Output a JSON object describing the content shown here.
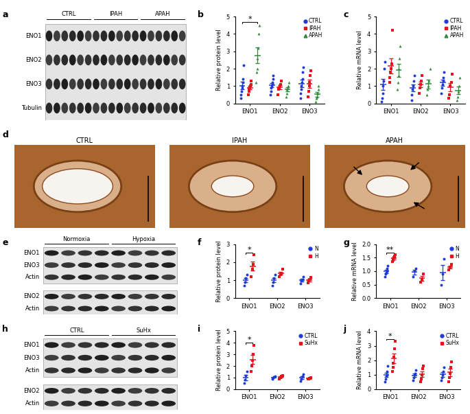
{
  "chart_data": [
    {
      "panel": "b",
      "type": "dot",
      "ylabel": "Relative protein level",
      "categories": [
        "ENO1",
        "ENO2",
        "ENO3"
      ],
      "ylim": [
        0,
        5
      ],
      "yticks": [
        0,
        1,
        2,
        3,
        4,
        5
      ],
      "legend": "upper right",
      "series": [
        {
          "name": "CTRL",
          "color": "#1f3bd6",
          "marker": "circle",
          "values": [
            [
              0.3,
              0.5,
              0.7,
              0.9,
              1.0,
              1.2,
              1.4,
              2.2
            ],
            [
              0.5,
              0.7,
              0.9,
              1.0,
              1.1,
              1.2,
              1.4,
              1.6
            ],
            [
              0.3,
              0.6,
              0.8,
              1.0,
              1.2,
              1.4,
              1.8,
              2.1
            ]
          ]
        },
        {
          "name": "IPAH",
          "color": "#e3141b",
          "marker": "square",
          "values": [
            [
              0.5,
              0.7,
              0.8,
              0.9,
              1.0,
              1.1,
              1.3
            ],
            [
              0.5,
              0.8,
              0.9,
              1.0,
              1.1,
              1.3
            ],
            [
              0.4,
              0.7,
              1.0,
              1.2,
              1.6,
              1.9
            ]
          ]
        },
        {
          "name": "APAH",
          "color": "#2e8b3a",
          "marker": "triangle",
          "values": [
            [
              1.2,
              1.8,
              2.0,
              2.6,
              3.2,
              4.0,
              4.5
            ],
            [
              0.4,
              0.6,
              0.8,
              0.9,
              1.0,
              1.2
            ],
            [
              0.1,
              0.3,
              0.4,
              0.6,
              0.8,
              1.0
            ]
          ]
        }
      ],
      "annotations": [
        {
          "text": "*",
          "category": "ENO1",
          "series": [
            "CTRL",
            "APAH"
          ]
        }
      ]
    },
    {
      "panel": "c",
      "type": "dot",
      "ylabel": "Relative mRNA level",
      "categories": [
        "ENO1",
        "ENO2",
        "ENO3"
      ],
      "ylim": [
        0,
        5
      ],
      "yticks": [
        0,
        1,
        2,
        3,
        4,
        5
      ],
      "legend": "upper right",
      "series": [
        {
          "name": "CTRL",
          "color": "#1f3bd6",
          "marker": "circle",
          "values": [
            [
              0.1,
              0.3,
              0.6,
              1.0,
              1.3,
              2.0,
              2.4
            ],
            [
              0.2,
              0.5,
              0.8,
              1.0,
              1.3,
              1.6
            ],
            [
              0.6,
              0.9,
              1.1,
              1.3,
              1.5,
              1.8
            ]
          ]
        },
        {
          "name": "IPAH",
          "color": "#e3141b",
          "marker": "square",
          "values": [
            [
              1.2,
              1.5,
              1.8,
              2.0,
              2.3,
              4.2
            ],
            [
              0.6,
              0.9,
              1.1,
              1.3,
              1.6
            ],
            [
              0.3,
              0.5,
              1.0,
              1.2,
              1.7
            ]
          ]
        },
        {
          "name": "APAH",
          "color": "#2e8b3a",
          "marker": "triangle",
          "values": [
            [
              0.8,
              1.2,
              1.6,
              2.0,
              2.6,
              3.3
            ],
            [
              0.5,
              0.8,
              1.0,
              1.3,
              2.0
            ],
            [
              0.2,
              0.4,
              0.7,
              1.0,
              1.5
            ]
          ]
        }
      ],
      "annotations": []
    },
    {
      "panel": "f",
      "type": "dot",
      "ylabel": "Relative protein level",
      "categories": [
        "ENO1",
        "ENO2",
        "ENO3"
      ],
      "ylim": [
        0,
        3
      ],
      "yticks": [
        0,
        1,
        2,
        3
      ],
      "legend": "upper right",
      "series": [
        {
          "name": "N",
          "color": "#1f3bd6",
          "marker": "circle",
          "values": [
            [
              0.7,
              0.9,
              1.1,
              1.3
            ],
            [
              0.7,
              0.9,
              1.1,
              1.3
            ],
            [
              0.8,
              0.95,
              1.05,
              1.2
            ]
          ]
        },
        {
          "name": "H",
          "color": "#e3141b",
          "marker": "square",
          "values": [
            [
              1.2,
              1.6,
              1.9,
              2.4
            ],
            [
              1.2,
              1.3,
              1.4,
              1.6
            ],
            [
              0.85,
              0.95,
              1.05,
              1.15
            ]
          ]
        }
      ],
      "annotations": [
        {
          "text": "*",
          "category": "ENO1",
          "series": [
            "N",
            "H"
          ]
        }
      ]
    },
    {
      "panel": "g",
      "type": "dot",
      "ylabel": "Relative mRNA level",
      "categories": [
        "ENO1",
        "ENO2",
        "ENO3"
      ],
      "ylim": [
        0,
        2
      ],
      "yticks": [
        {
          "value": 0,
          "label": "0.0"
        },
        {
          "value": 0.5,
          "label": "0.5"
        },
        {
          "value": 1,
          "label": "1.0"
        },
        {
          "value": 1.5,
          "label": "1.5"
        },
        {
          "value": 2,
          "label": "2.0"
        }
      ],
      "legend": "upper right",
      "series": [
        {
          "name": "N",
          "color": "#1f3bd6",
          "marker": "circle",
          "values": [
            [
              0.8,
              0.9,
              0.95,
              1.0,
              1.1,
              1.2
            ],
            [
              0.8,
              1.0,
              1.1
            ],
            [
              0.5,
              0.9,
              1.45
            ]
          ]
        },
        {
          "name": "H",
          "color": "#e3141b",
          "marker": "square",
          "values": [
            [
              1.35,
              1.4,
              1.45,
              1.5,
              1.55,
              1.6
            ],
            [
              0.6,
              0.7,
              0.9
            ],
            [
              1.05,
              1.15,
              1.25
            ]
          ]
        }
      ],
      "annotations": [
        {
          "text": "**",
          "category": "ENO1",
          "series": [
            "N",
            "H"
          ]
        }
      ]
    },
    {
      "panel": "i",
      "type": "dot",
      "ylabel": "Relative protein level",
      "categories": [
        "ENO1",
        "ENO2",
        "ENO3"
      ],
      "ylim": [
        0,
        5
      ],
      "yticks": [
        0,
        1,
        2,
        3,
        4,
        5
      ],
      "legend": "upper right",
      "series": [
        {
          "name": "CTRL",
          "color": "#1f3bd6",
          "marker": "circle",
          "values": [
            [
              0.5,
              0.8,
              1.2,
              1.5
            ],
            [
              0.9,
              1.0,
              1.05,
              1.1
            ],
            [
              0.7,
              0.9,
              1.1,
              1.3
            ]
          ]
        },
        {
          "name": "SuHx",
          "color": "#e3141b",
          "marker": "square",
          "values": [
            [
              1.5,
              2.0,
              2.5,
              3.0,
              3.8
            ],
            [
              0.9,
              1.0,
              1.1,
              1.15
            ],
            [
              0.85,
              0.9,
              0.95,
              1.0
            ]
          ]
        }
      ],
      "annotations": [
        {
          "text": "*",
          "category": "ENO1",
          "series": [
            "CTRL",
            "SuHx"
          ]
        }
      ]
    },
    {
      "panel": "j",
      "type": "dot",
      "ylabel": "Relative mRNA level",
      "categories": [
        "ENO1",
        "ENO2",
        "ENO3"
      ],
      "ylim": [
        0,
        4
      ],
      "yticks": [
        0,
        1,
        2,
        3,
        4
      ],
      "legend": "upper right",
      "series": [
        {
          "name": "CTRL",
          "color": "#1f3bd6",
          "marker": "circle",
          "values": [
            [
              0.5,
              0.7,
              0.9,
              1.0,
              1.2,
              1.6
            ],
            [
              0.6,
              0.8,
              1.0,
              1.1,
              1.3
            ],
            [
              0.6,
              0.8,
              1.0,
              1.2,
              1.5
            ]
          ]
        },
        {
          "name": "SuHx",
          "color": "#e3141b",
          "marker": "square",
          "values": [
            [
              1.2,
              1.5,
              1.8,
              2.2,
              2.8,
              3.3
            ],
            [
              0.5,
              0.7,
              1.0,
              1.4,
              1.6
            ],
            [
              0.5,
              0.8,
              1.1,
              1.5,
              1.9
            ]
          ]
        }
      ],
      "annotations": [
        {
          "text": "*",
          "category": "ENO1",
          "series": [
            "CTRL",
            "SuHx"
          ]
        }
      ]
    }
  ],
  "blots": [
    {
      "panel": "a",
      "groups": [
        "CTRL",
        "IPAH",
        "APAH"
      ],
      "sections": [
        [
          "ENO1",
          "ENO2",
          "ENO3",
          "Tubulin"
        ]
      ]
    },
    {
      "panel": "e",
      "groups": [
        "Normoxia",
        "Hypoxia"
      ],
      "sections": [
        [
          "ENO1",
          "ENO3",
          "Actin"
        ],
        [
          "ENO2",
          "Actin"
        ]
      ]
    },
    {
      "panel": "h",
      "groups": [
        "CTRL",
        "SuHx"
      ],
      "sections": [
        [
          "ENO1",
          "ENO3",
          "Actin"
        ],
        [
          "ENO2",
          "Actin"
        ]
      ]
    }
  ],
  "histology": {
    "panel": "d",
    "titles": [
      "CTRL",
      "IPAH",
      "APAH"
    ]
  }
}
